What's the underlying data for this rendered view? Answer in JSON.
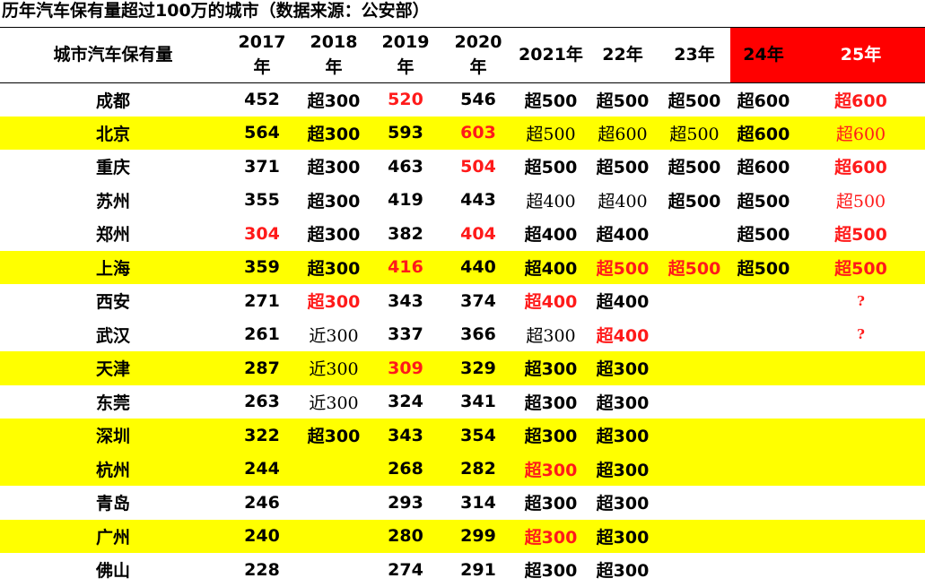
{
  "title": "历年汽车保有量超过100万的城市（数据来源：公安部）",
  "header": {
    "city": "城市汽车保有量",
    "y2017": "2017\n年",
    "y2018": "2018\n年",
    "y2019": "2019\n年",
    "y2020": "2020\n年",
    "y2021": "2021年",
    "y22": "22年",
    "y23": "23年",
    "y24": "24年",
    "y25": "25年"
  },
  "colors": {
    "highlight_row": "#ffff00",
    "highlight_red": "#ff1a1a",
    "header_red_cell": "#ff0000"
  },
  "rows": [
    {
      "city": "成都",
      "v": [
        "452",
        "超300",
        "520",
        "546",
        "超500",
        "超500",
        "超500",
        "超600",
        "超600"
      ],
      "red": [
        2,
        8
      ],
      "serif": [],
      "yellow": false
    },
    {
      "city": "北京",
      "v": [
        "564",
        "超300",
        "593",
        "603",
        "超500",
        "超600",
        "超500",
        "超600",
        "超600"
      ],
      "red": [
        3,
        8
      ],
      "serif": [
        4,
        5,
        6,
        8
      ],
      "yellow": true
    },
    {
      "city": "重庆",
      "v": [
        "371",
        "超300",
        "463",
        "504",
        "超500",
        "超500",
        "超500",
        "超600",
        "超600"
      ],
      "red": [
        3,
        8
      ],
      "serif": [],
      "yellow": false
    },
    {
      "city": "苏州",
      "v": [
        "355",
        "超300",
        "419",
        "443",
        "超400",
        "超400",
        "超500",
        "超500",
        "超500"
      ],
      "red": [
        8
      ],
      "serif": [
        4,
        5,
        8
      ],
      "yellow": false
    },
    {
      "city": "郑州",
      "v": [
        "304",
        "超300",
        "382",
        "404",
        "超400",
        "超400",
        "",
        "超500",
        "超500"
      ],
      "red": [
        0,
        3,
        8
      ],
      "serif": [],
      "yellow": false
    },
    {
      "city": "上海",
      "v": [
        "359",
        "超300",
        "416",
        "440",
        "超400",
        "超500",
        "超500",
        "超500",
        "超500"
      ],
      "red": [
        2,
        5,
        6,
        8
      ],
      "serif": [],
      "yellow": true
    },
    {
      "city": "西安",
      "v": [
        "271",
        "超300",
        "343",
        "374",
        "超400",
        "超400",
        "",
        "",
        "?"
      ],
      "red": [
        1,
        4
      ],
      "serif": [],
      "yellow": false
    },
    {
      "city": "武汉",
      "v": [
        "261",
        "近300",
        "337",
        "366",
        "超300",
        "超400",
        "",
        "",
        "?"
      ],
      "red": [
        5
      ],
      "serif": [
        1,
        4
      ],
      "yellow": false
    },
    {
      "city": "天津",
      "v": [
        "287",
        "近300",
        "309",
        "329",
        "超300",
        "超300",
        "",
        "",
        ""
      ],
      "red": [
        2
      ],
      "serif": [
        1
      ],
      "yellow": true
    },
    {
      "city": "东莞",
      "v": [
        "263",
        "近300",
        "324",
        "341",
        "超300",
        "超300",
        "",
        "",
        ""
      ],
      "red": [],
      "serif": [
        1
      ],
      "yellow": false
    },
    {
      "city": "深圳",
      "v": [
        "322",
        "超300",
        "343",
        "354",
        "超300",
        "超300",
        "",
        "",
        ""
      ],
      "red": [],
      "serif": [],
      "yellow": true
    },
    {
      "city": "杭州",
      "v": [
        "244",
        "",
        "268",
        "282",
        "超300",
        "超300",
        "",
        "",
        ""
      ],
      "red": [
        4
      ],
      "serif": [],
      "yellow": true
    },
    {
      "city": "青岛",
      "v": [
        "246",
        "",
        "293",
        "314",
        "超300",
        "超300",
        "",
        "",
        ""
      ],
      "red": [],
      "serif": [],
      "yellow": false
    },
    {
      "city": "广州",
      "v": [
        "240",
        "",
        "280",
        "299",
        "超300",
        "超300",
        "",
        "",
        ""
      ],
      "red": [
        4
      ],
      "serif": [],
      "yellow": true
    },
    {
      "city": "佛山",
      "v": [
        "228",
        "",
        "274",
        "291",
        "超300",
        "超300",
        "",
        "",
        ""
      ],
      "red": [],
      "serif": [],
      "yellow": false
    }
  ]
}
